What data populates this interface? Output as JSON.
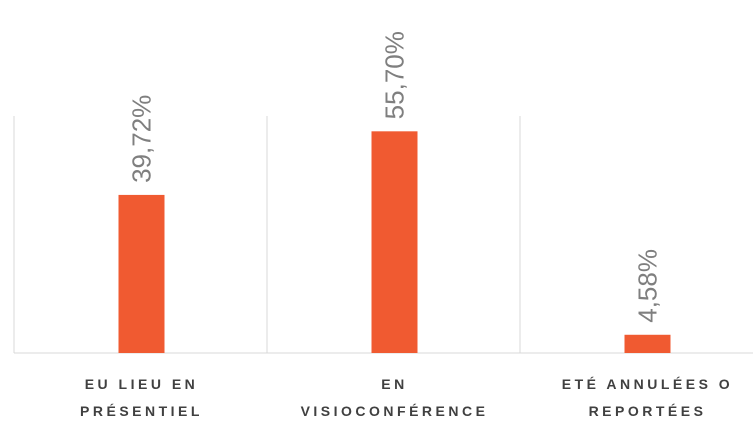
{
  "chart_data": {
    "type": "bar",
    "categories": [
      [
        "EU LIEU EN",
        "PRÉSENTIEL"
      ],
      [
        "EN",
        "VISIOCONFÉRENCE"
      ],
      [
        "ETÉ ANNULÉES O",
        "REPORTÉES"
      ]
    ],
    "values": [
      39.72,
      55.7,
      4.58
    ],
    "value_labels": [
      "39,72%",
      "55,70%",
      "4,58%"
    ],
    "color": "#f05a31"
  }
}
